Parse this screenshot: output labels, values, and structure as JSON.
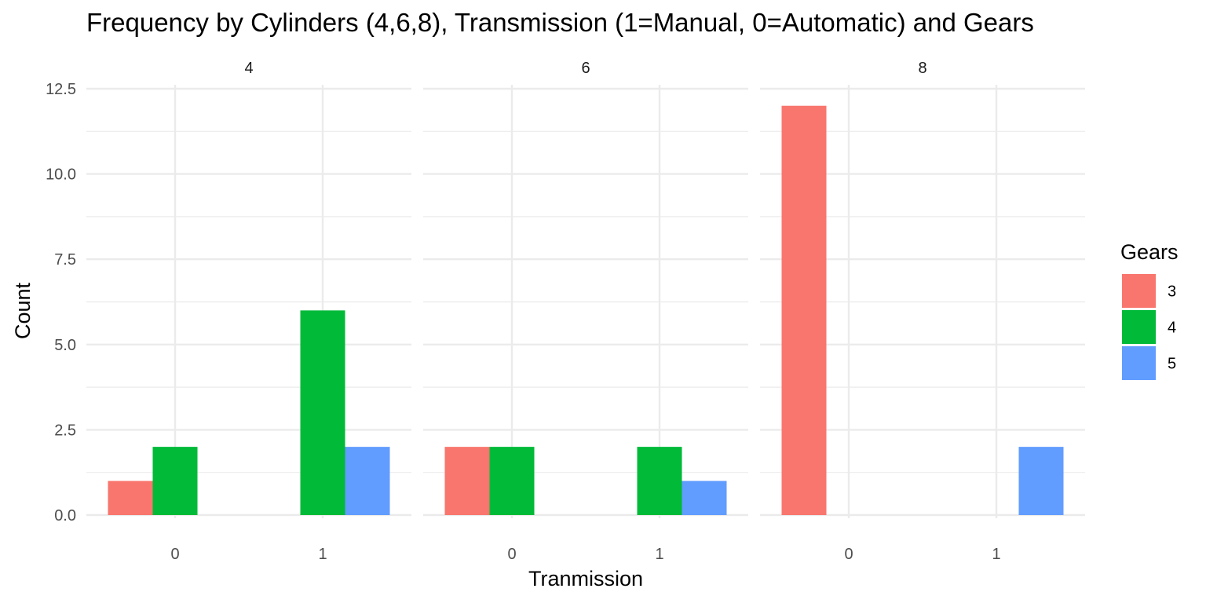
{
  "chart_data": {
    "type": "bar",
    "title": "Frequency by Cylinders (4,6,8), Transmission (1=Manual, 0=Automatic) and Gears",
    "xlabel": "Tranmission",
    "ylabel": "Count",
    "ylim": [
      0,
      12.5
    ],
    "y_ticks": [
      "0.0",
      "2.5",
      "5.0",
      "7.5",
      "10.0",
      "12.5"
    ],
    "y_tick_values": [
      0,
      2.5,
      5,
      7.5,
      10,
      12.5
    ],
    "categories": [
      "0",
      "1"
    ],
    "legend": {
      "title": "Gears",
      "position": "right",
      "items": [
        {
          "label": "3",
          "color": "#F8766D"
        },
        {
          "label": "4",
          "color": "#00BA38"
        },
        {
          "label": "5",
          "color": "#619CFF"
        }
      ]
    },
    "facets": [
      {
        "label": "4",
        "series": [
          {
            "name": "3",
            "values": [
              1,
              0
            ]
          },
          {
            "name": "4",
            "values": [
              2,
              6
            ]
          },
          {
            "name": "5",
            "values": [
              0,
              2
            ]
          }
        ]
      },
      {
        "label": "6",
        "series": [
          {
            "name": "3",
            "values": [
              2,
              0
            ]
          },
          {
            "name": "4",
            "values": [
              2,
              2
            ]
          },
          {
            "name": "5",
            "values": [
              0,
              1
            ]
          }
        ]
      },
      {
        "label": "8",
        "series": [
          {
            "name": "3",
            "values": [
              12,
              0
            ]
          },
          {
            "name": "4",
            "values": [
              0,
              0
            ]
          },
          {
            "name": "5",
            "values": [
              0,
              2
            ]
          }
        ]
      }
    ],
    "grid": true
  }
}
